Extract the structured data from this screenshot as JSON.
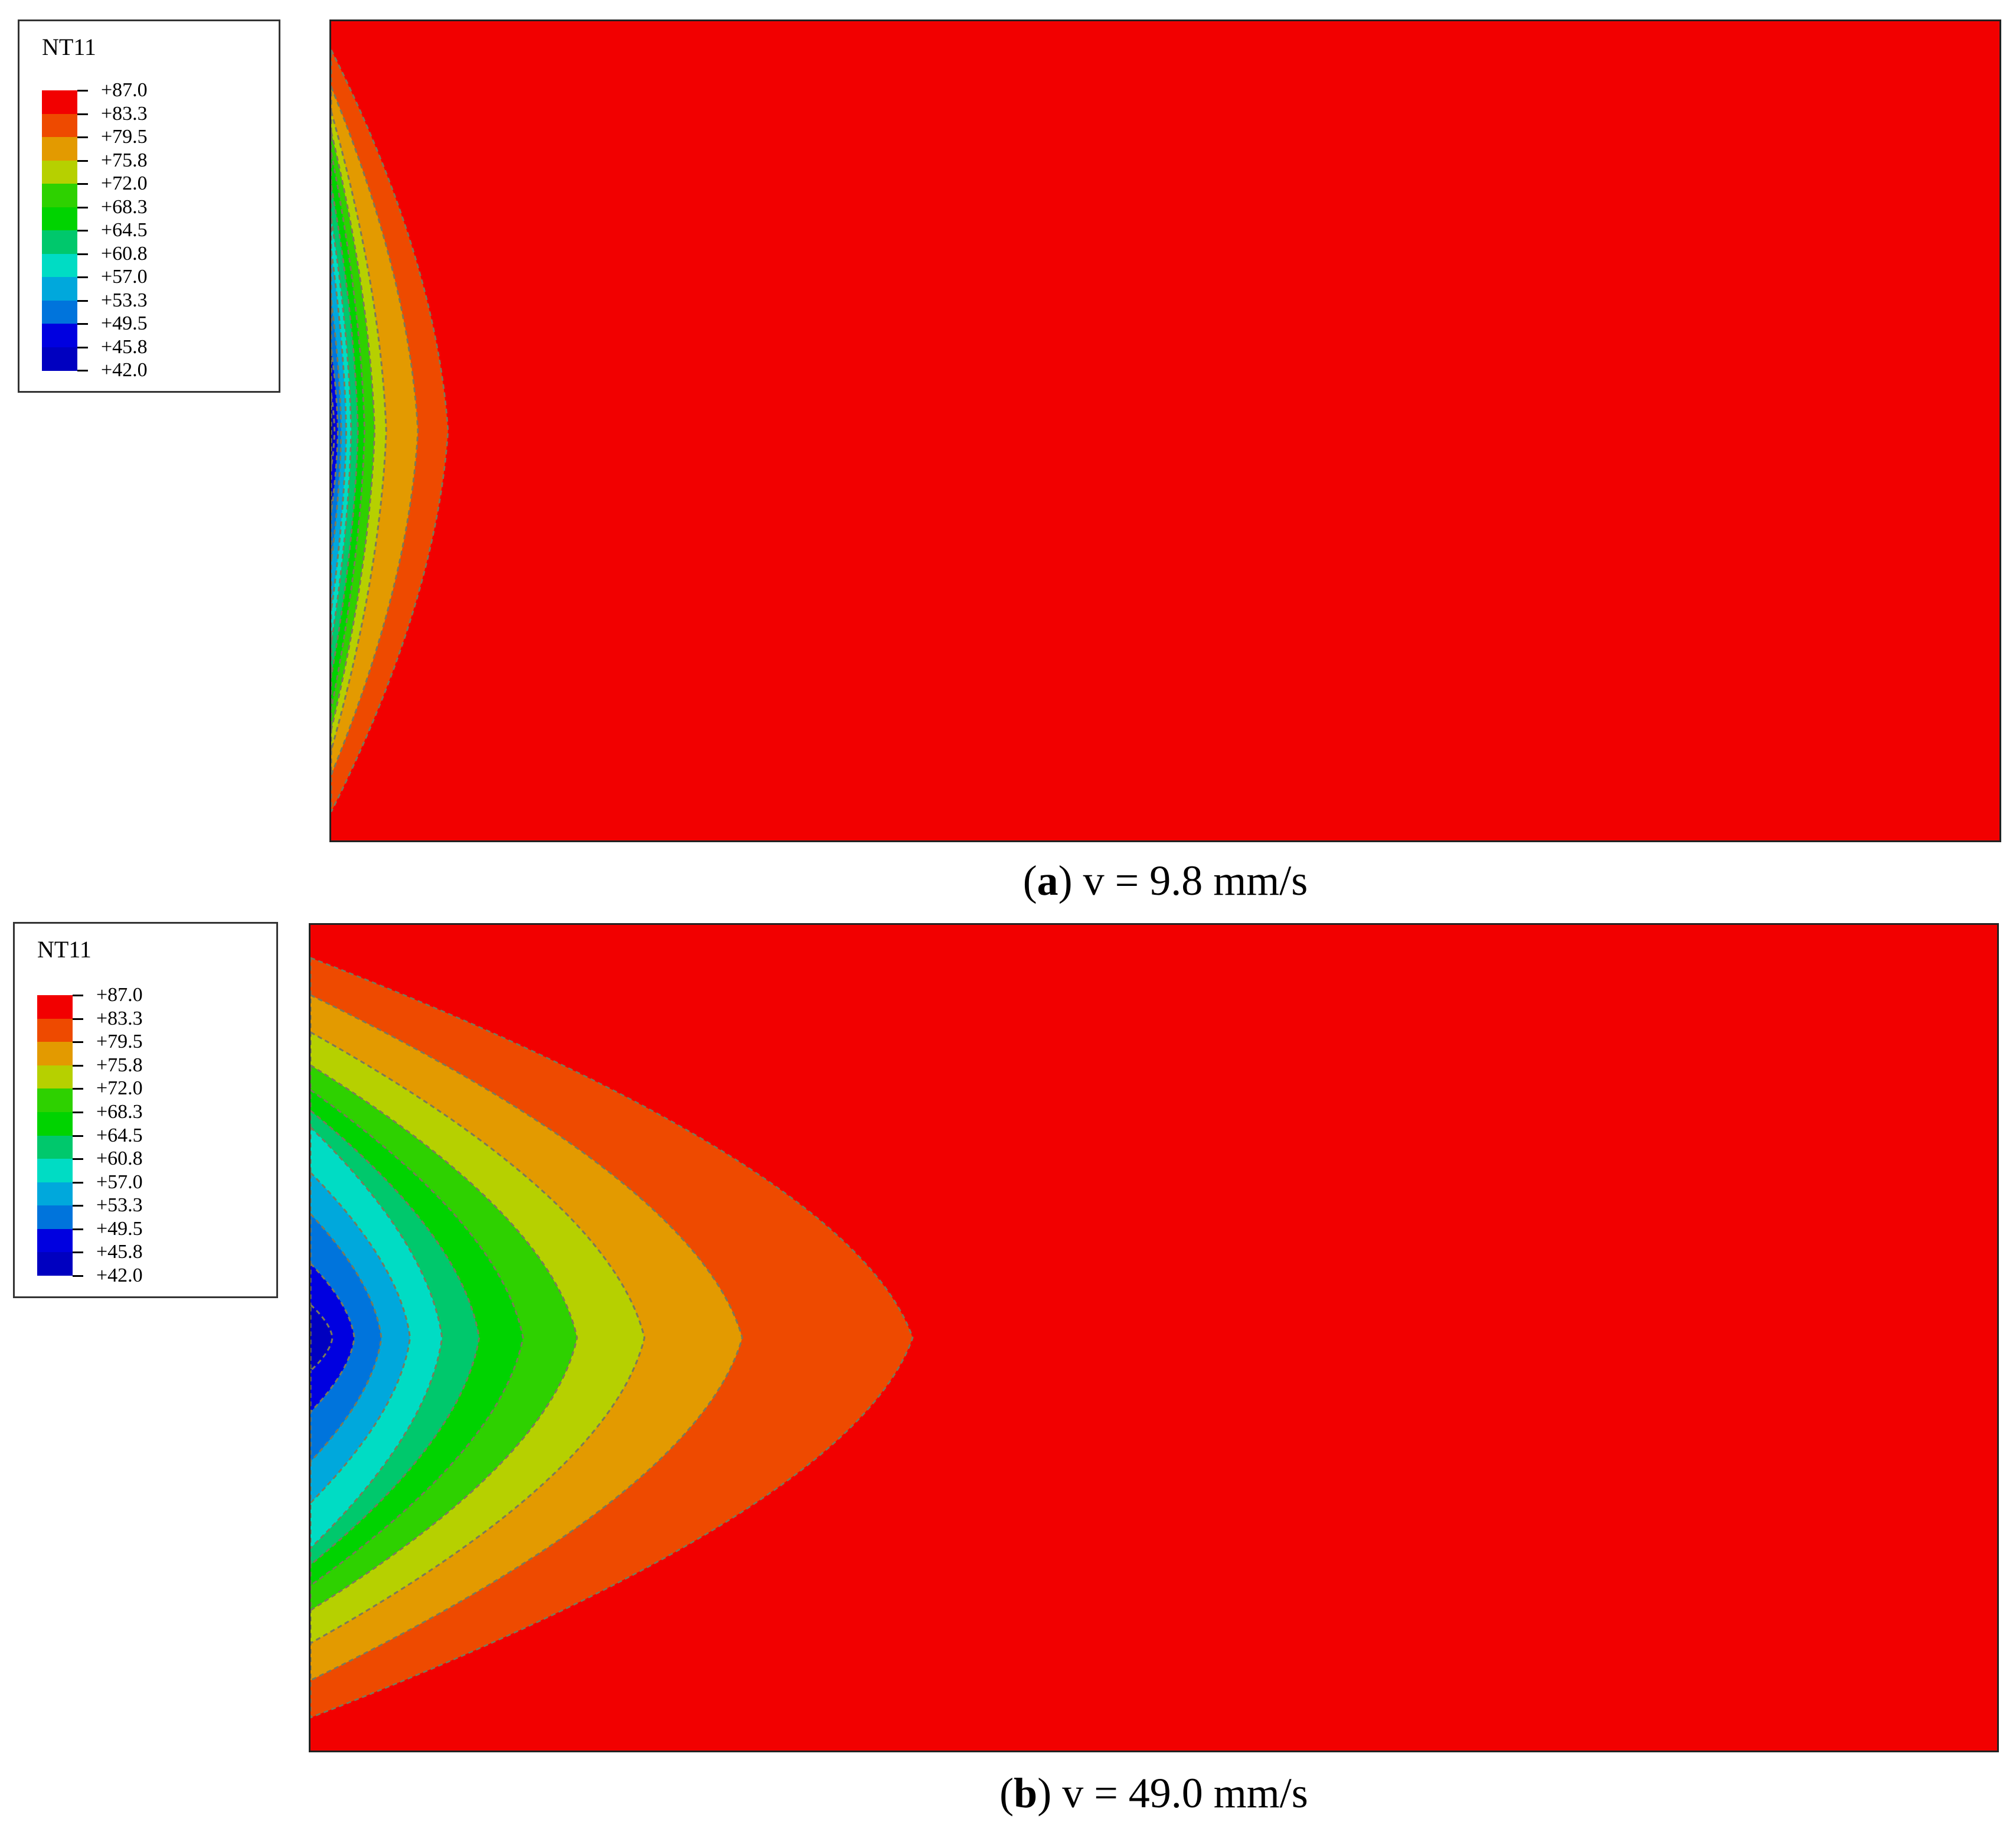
{
  "legend": {
    "title": "NT11",
    "levels": [
      "+87.0",
      "+83.3",
      "+79.5",
      "+75.8",
      "+72.0",
      "+68.3",
      "+64.5",
      "+60.8",
      "+57.0",
      "+53.3",
      "+49.5",
      "+45.8",
      "+42.0"
    ],
    "colors": [
      "#f20000",
      "#ee4a00",
      "#e39a00",
      "#b6d000",
      "#2ed100",
      "#00d300",
      "#00c86c",
      "#00dcc4",
      "#00a8dc",
      "#0074dc",
      "#0000e0",
      "#0000c0"
    ]
  },
  "background_color": "#f20000",
  "panels": [
    {
      "label": "a",
      "caption": "v = 9.8 mm/s",
      "contours": [
        {
          "depth": 0.07,
          "span": 0.93
        },
        {
          "depth": 0.052,
          "span": 0.84
        },
        {
          "depth": 0.033,
          "span": 0.78
        },
        {
          "depth": 0.026,
          "span": 0.73
        },
        {
          "depth": 0.02,
          "span": 0.68
        },
        {
          "depth": 0.016,
          "span": 0.6
        },
        {
          "depth": 0.012,
          "span": 0.52
        },
        {
          "depth": 0.009,
          "span": 0.44
        },
        {
          "depth": 0.006,
          "span": 0.32
        },
        {
          "depth": 0.004,
          "span": 0.2
        },
        {
          "depth": 0.002,
          "span": 0.09
        }
      ]
    },
    {
      "label": "b",
      "caption": "v = 49.0 mm/s",
      "contours": [
        {
          "depth": 0.357,
          "span": 0.92
        },
        {
          "depth": 0.256,
          "span": 0.83
        },
        {
          "depth": 0.198,
          "span": 0.74
        },
        {
          "depth": 0.158,
          "span": 0.66
        },
        {
          "depth": 0.126,
          "span": 0.6
        },
        {
          "depth": 0.1,
          "span": 0.55
        },
        {
          "depth": 0.078,
          "span": 0.51
        },
        {
          "depth": 0.059,
          "span": 0.4
        },
        {
          "depth": 0.042,
          "span": 0.3
        },
        {
          "depth": 0.026,
          "span": 0.18
        },
        {
          "depth": 0.013,
          "span": 0.08
        }
      ]
    }
  ]
}
